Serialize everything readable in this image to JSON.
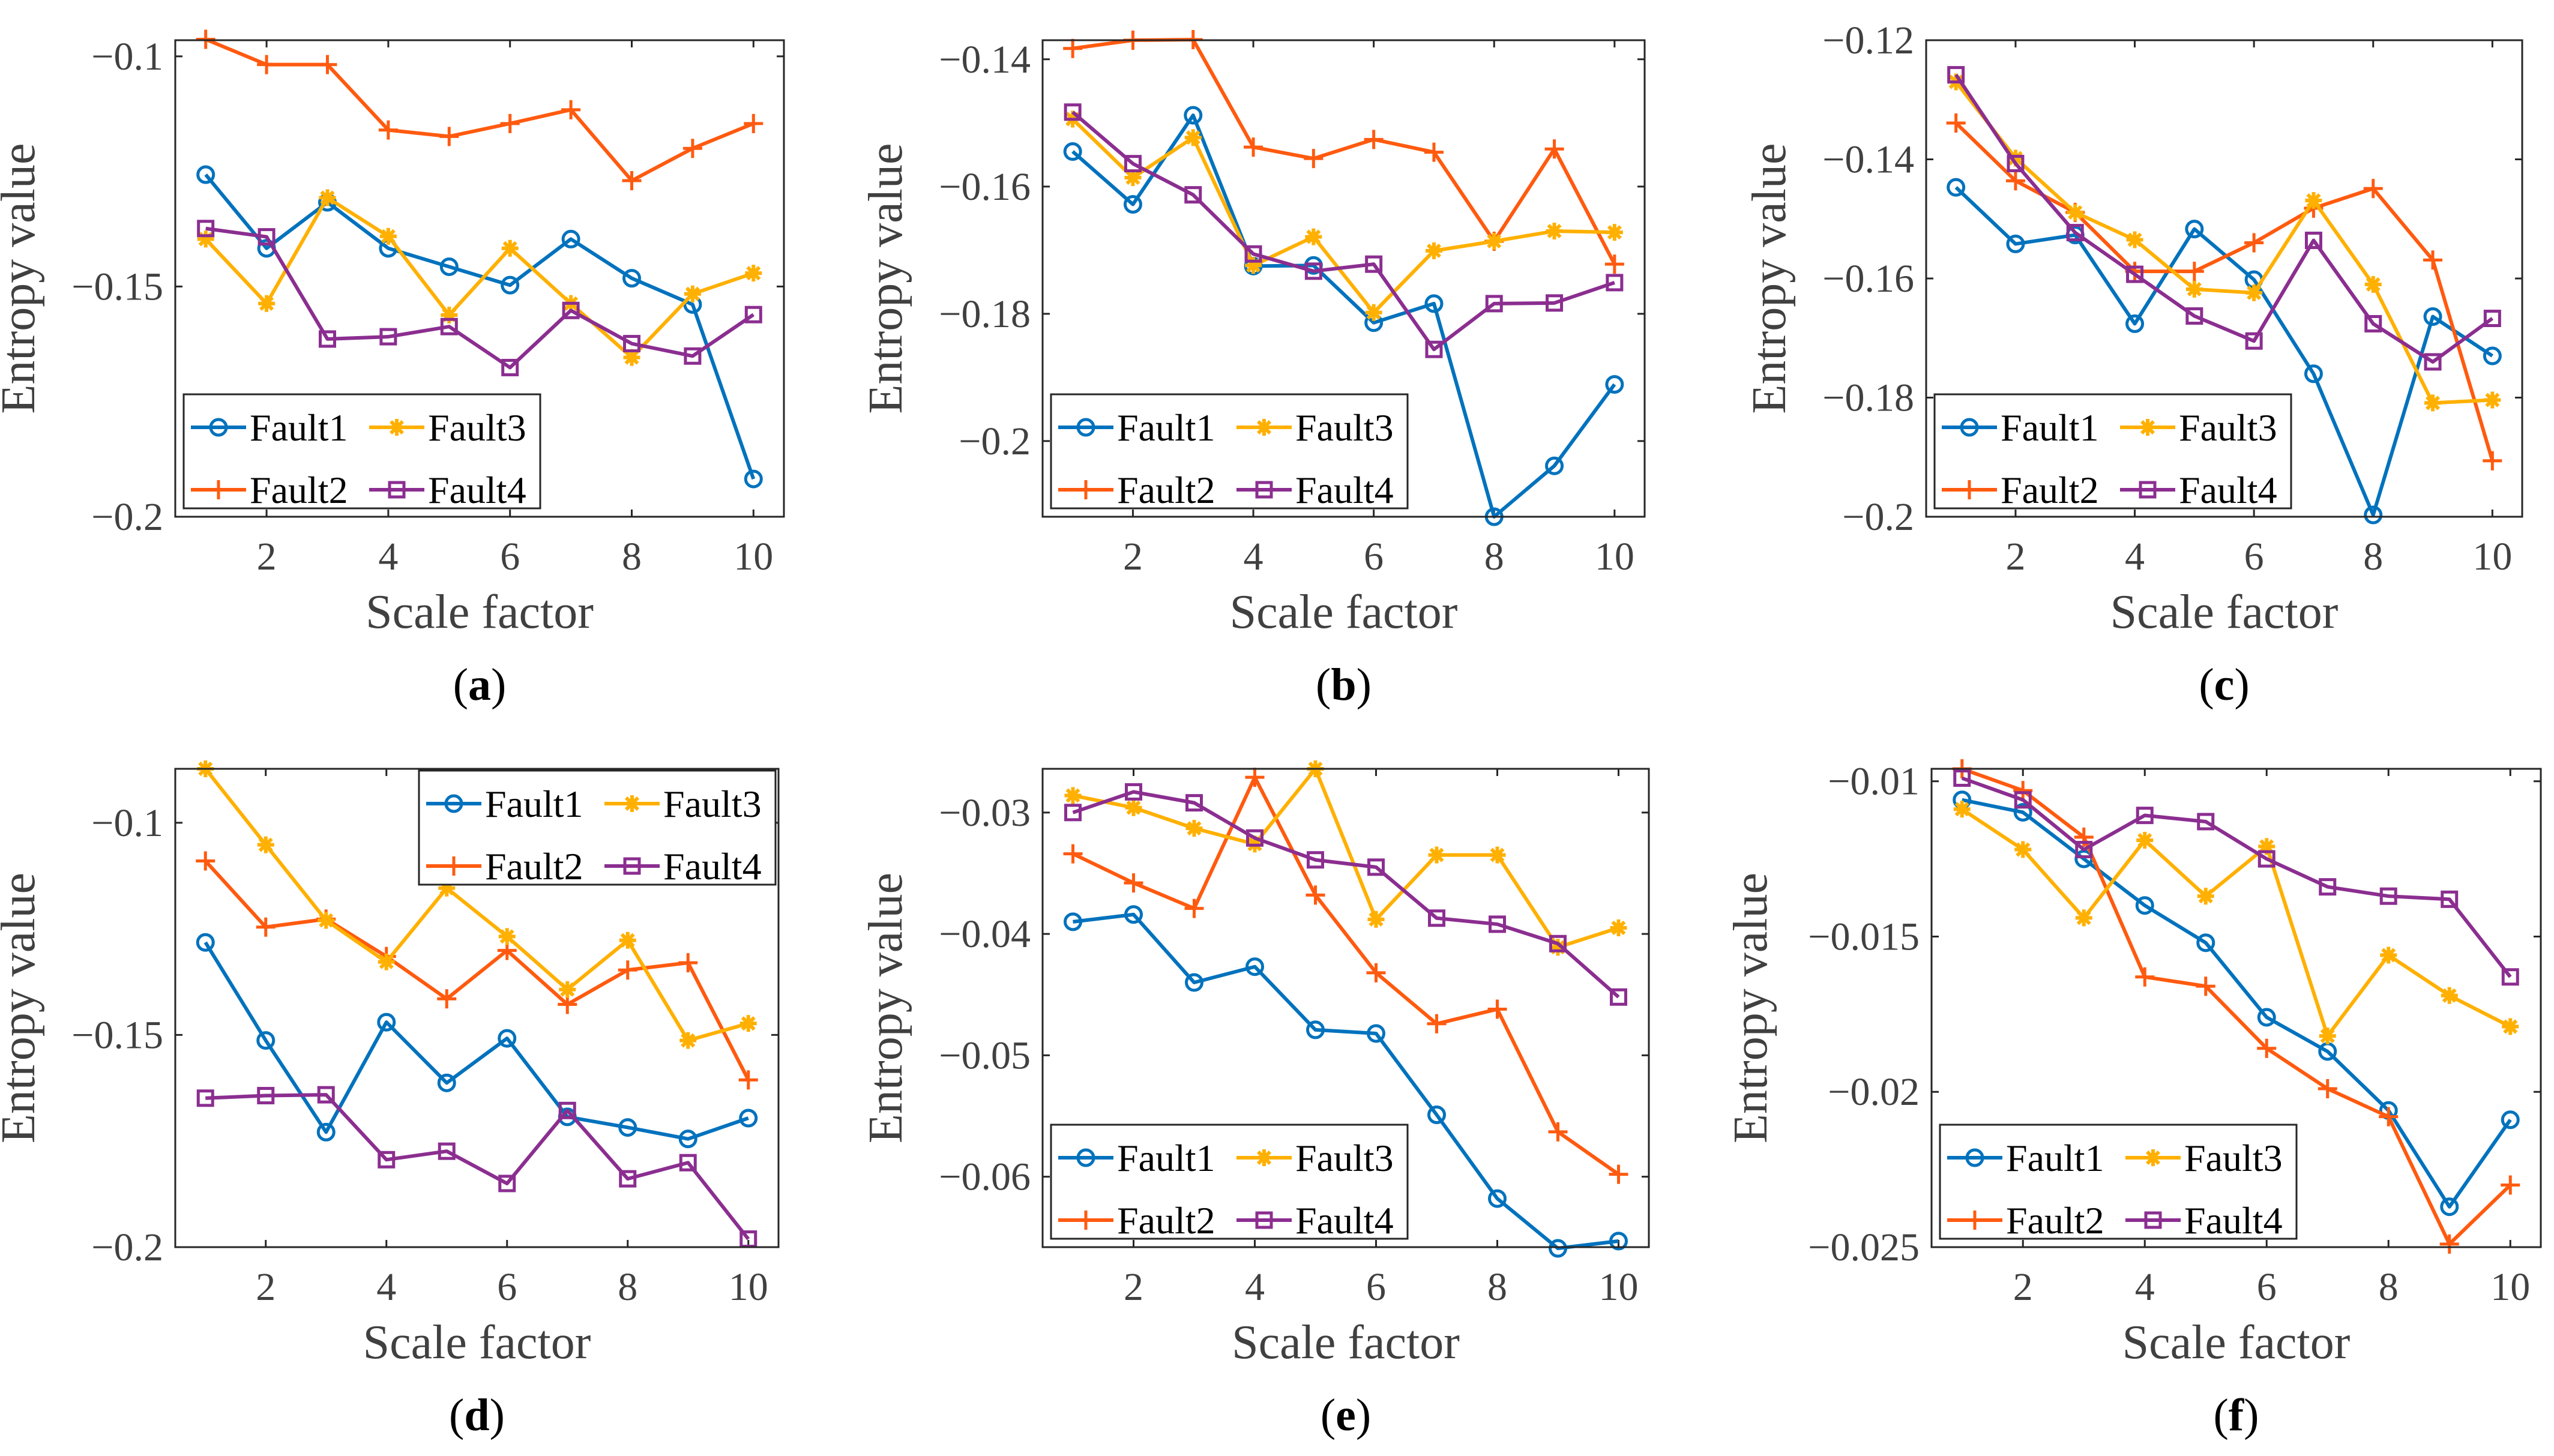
{
  "series_style": {
    "Fault1": {
      "color": "#0072BD",
      "marker": "circle"
    },
    "Fault2": {
      "color": "#FF5A0F",
      "marker": "plus"
    },
    "Fault3": {
      "color": "#FFB000",
      "marker": "asterisk"
    },
    "Fault4": {
      "color": "#8B2E90",
      "marker": "square"
    }
  },
  "chart_data": [
    {
      "type": "line",
      "caption_letter": "a",
      "xlabel": "Scale factor",
      "ylabel": "Entropy value",
      "x": [
        1,
        2,
        3,
        4,
        5,
        6,
        7,
        8,
        9,
        10
      ],
      "xlim": [
        0.5,
        10.5
      ],
      "ylim": [
        -0.2,
        -0.0965
      ],
      "xticks": [
        2,
        4,
        6,
        8,
        10
      ],
      "yticks": [
        -0.2,
        -0.15,
        -0.1
      ],
      "ytick_labels": [
        "−0.2",
        "−0.15",
        "−0.1"
      ],
      "legend": {
        "location": "bottom-left",
        "order": [
          "Fault1",
          "Fault3",
          "Fault2",
          "Fault4"
        ]
      },
      "series": [
        {
          "name": "Fault1",
          "values": [
            -0.1257,
            -0.1417,
            -0.1317,
            -0.1417,
            -0.1457,
            -0.1497,
            -0.1397,
            -0.1482,
            -0.1539,
            -0.1918
          ]
        },
        {
          "name": "Fault2",
          "values": [
            -0.0963,
            -0.1018,
            -0.1018,
            -0.116,
            -0.1174,
            -0.1146,
            -0.1116,
            -0.127,
            -0.12,
            -0.1146
          ]
        },
        {
          "name": "Fault3",
          "values": [
            -0.1397,
            -0.1537,
            -0.1307,
            -0.1391,
            -0.1562,
            -0.1417,
            -0.1537,
            -0.1654,
            -0.1516,
            -0.1471
          ]
        },
        {
          "name": "Fault4",
          "values": [
            -0.1374,
            -0.1392,
            -0.1614,
            -0.1609,
            -0.1587,
            -0.1676,
            -0.1552,
            -0.1624,
            -0.1651,
            -0.1561
          ]
        }
      ]
    },
    {
      "type": "line",
      "caption_letter": "b",
      "xlabel": "Scale factor",
      "ylabel": "Entropy value",
      "x": [
        1,
        2,
        3,
        4,
        5,
        6,
        7,
        8,
        9,
        10
      ],
      "xlim": [
        0.5,
        10.5
      ],
      "ylim": [
        -0.2119,
        -0.137
      ],
      "xticks": [
        2,
        4,
        6,
        8,
        10
      ],
      "yticks": [
        -0.2,
        -0.18,
        -0.16,
        -0.14
      ],
      "ytick_labels": [
        "−0.2",
        "−0.18",
        "−0.16",
        "−0.14"
      ],
      "legend": {
        "location": "bottom-left",
        "order": [
          "Fault1",
          "Fault3",
          "Fault2",
          "Fault4"
        ]
      },
      "series": [
        {
          "name": "Fault1",
          "values": [
            -0.1545,
            -0.1628,
            -0.1488,
            -0.1725,
            -0.1724,
            -0.1814,
            -0.1784,
            -0.2119,
            -0.2039,
            -0.1911
          ]
        },
        {
          "name": "Fault2",
          "values": [
            -0.1383,
            -0.137,
            -0.1369,
            -0.1538,
            -0.1556,
            -0.1526,
            -0.1546,
            -0.1686,
            -0.1541,
            -0.1722
          ]
        },
        {
          "name": "Fault3",
          "values": [
            -0.1494,
            -0.1586,
            -0.1523,
            -0.1724,
            -0.1679,
            -0.1798,
            -0.1701,
            -0.1686,
            -0.167,
            -0.1672
          ]
        },
        {
          "name": "Fault4",
          "values": [
            -0.1483,
            -0.1564,
            -0.1613,
            -0.1706,
            -0.1733,
            -0.1722,
            -0.1856,
            -0.1784,
            -0.1783,
            -0.1751
          ]
        }
      ]
    },
    {
      "type": "line",
      "caption_letter": "c",
      "xlabel": "Scale factor",
      "ylabel": "Entropy value",
      "x": [
        1,
        2,
        3,
        4,
        5,
        6,
        7,
        8,
        9,
        10
      ],
      "xlim": [
        0.5,
        10.5
      ],
      "ylim": [
        -0.2,
        -0.12
      ],
      "xticks": [
        2,
        4,
        6,
        8,
        10
      ],
      "yticks": [
        -0.2,
        -0.18,
        -0.16,
        -0.14,
        -0.12
      ],
      "ytick_labels": [
        "−0.2",
        "−0.18",
        "−0.16",
        "−0.14",
        "−0.12"
      ],
      "legend": {
        "location": "bottom-left",
        "order": [
          "Fault1",
          "Fault3",
          "Fault2",
          "Fault4"
        ]
      },
      "series": [
        {
          "name": "Fault1",
          "values": [
            -0.1447,
            -0.1542,
            -0.1527,
            -0.1676,
            -0.1517,
            -0.1602,
            -0.176,
            -0.1997,
            -0.1664,
            -0.173
          ]
        },
        {
          "name": "Fault2",
          "values": [
            -0.1339,
            -0.1436,
            -0.1489,
            -0.1588,
            -0.1588,
            -0.154,
            -0.1482,
            -0.1449,
            -0.1569,
            -0.1906
          ]
        },
        {
          "name": "Fault3",
          "values": [
            -0.127,
            -0.1398,
            -0.1489,
            -0.1535,
            -0.1618,
            -0.1624,
            -0.1469,
            -0.161,
            -0.1809,
            -0.1804
          ]
        },
        {
          "name": "Fault4",
          "values": [
            -0.1258,
            -0.1407,
            -0.1523,
            -0.1593,
            -0.1663,
            -0.1705,
            -0.1536,
            -0.1676,
            -0.174,
            -0.1667
          ]
        }
      ]
    },
    {
      "type": "line",
      "caption_letter": "d",
      "xlabel": "Scale factor",
      "ylabel": "Entropy value",
      "x": [
        1,
        2,
        3,
        4,
        5,
        6,
        7,
        8,
        9,
        10
      ],
      "xlim": [
        0.5,
        10.5
      ],
      "ylim": [
        -0.2,
        -0.0873
      ],
      "xticks": [
        2,
        4,
        6,
        8,
        10
      ],
      "yticks": [
        -0.2,
        -0.15,
        -0.1
      ],
      "ytick_labels": [
        "−0.2",
        "−0.15",
        "−0.1"
      ],
      "legend": {
        "location": "top-right",
        "order": [
          "Fault1",
          "Fault3",
          "Fault2",
          "Fault4"
        ]
      },
      "series": [
        {
          "name": "Fault1",
          "values": [
            -0.1282,
            -0.1513,
            -0.1729,
            -0.147,
            -0.1613,
            -0.1508,
            -0.1693,
            -0.1718,
            -0.1745,
            -0.1696
          ]
        },
        {
          "name": "Fault2",
          "values": [
            -0.109,
            -0.1246,
            -0.1227,
            -0.1315,
            -0.1415,
            -0.1301,
            -0.1428,
            -0.1347,
            -0.133,
            -0.1606
          ]
        },
        {
          "name": "Fault3",
          "values": [
            -0.0873,
            -0.1052,
            -0.123,
            -0.1328,
            -0.1154,
            -0.1268,
            -0.1393,
            -0.1277,
            -0.1513,
            -0.1473
          ]
        },
        {
          "name": "Fault4",
          "values": [
            -0.1649,
            -0.1643,
            -0.1641,
            -0.1794,
            -0.1774,
            -0.185,
            -0.1678,
            -0.1839,
            -0.1801,
            -0.1981
          ]
        }
      ]
    },
    {
      "type": "line",
      "caption_letter": "e",
      "xlabel": "Scale factor",
      "ylabel": "Entropy value",
      "x": [
        1,
        2,
        3,
        4,
        5,
        6,
        7,
        8,
        9,
        10
      ],
      "xlim": [
        0.5,
        10.5
      ],
      "ylim": [
        -0.0658,
        -0.0264
      ],
      "xticks": [
        2,
        4,
        6,
        8,
        10
      ],
      "yticks": [
        -0.06,
        -0.05,
        -0.04,
        -0.03
      ],
      "ytick_labels": [
        "−0.06",
        "−0.05",
        "−0.04",
        "−0.03"
      ],
      "legend": {
        "location": "bottom-left",
        "order": [
          "Fault1",
          "Fault3",
          "Fault2",
          "Fault4"
        ]
      },
      "series": [
        {
          "name": "Fault1",
          "values": [
            -0.039,
            -0.0384,
            -0.044,
            -0.0427,
            -0.0479,
            -0.0482,
            -0.0549,
            -0.0618,
            -0.0659,
            -0.0653
          ]
        },
        {
          "name": "Fault2",
          "values": [
            -0.0334,
            -0.0358,
            -0.0379,
            -0.0271,
            -0.0368,
            -0.0432,
            -0.0474,
            -0.0462,
            -0.0563,
            -0.0598
          ]
        },
        {
          "name": "Fault3",
          "values": [
            -0.0286,
            -0.0296,
            -0.0313,
            -0.0326,
            -0.0264,
            -0.0388,
            -0.0335,
            -0.0335,
            -0.0411,
            -0.0395
          ]
        },
        {
          "name": "Fault4",
          "values": [
            -0.03,
            -0.0283,
            -0.0292,
            -0.0321,
            -0.0339,
            -0.0345,
            -0.0387,
            -0.0392,
            -0.0408,
            -0.0452
          ]
        }
      ]
    },
    {
      "type": "line",
      "caption_letter": "f",
      "xlabel": "Scale factor",
      "ylabel": "Entropy value",
      "x": [
        1,
        2,
        3,
        4,
        5,
        6,
        7,
        8,
        9,
        10
      ],
      "xlim": [
        0.5,
        10.5
      ],
      "ylim": [
        -0.025,
        -0.0096
      ],
      "xticks": [
        2,
        4,
        6,
        8,
        10
      ],
      "yticks": [
        -0.025,
        -0.02,
        -0.015,
        -0.01
      ],
      "ytick_labels": [
        "−0.025",
        "−0.02",
        "−0.015",
        "−0.01"
      ],
      "legend": {
        "location": "bottom-left",
        "order": [
          "Fault1",
          "Fault3",
          "Fault2",
          "Fault4"
        ]
      },
      "series": [
        {
          "name": "Fault1",
          "values": [
            -0.0106,
            -0.011,
            -0.0125,
            -0.014,
            -0.0152,
            -0.0176,
            -0.0187,
            -0.0206,
            -0.0237,
            -0.0209
          ]
        },
        {
          "name": "Fault2",
          "values": [
            -0.0096,
            -0.0103,
            -0.0118,
            -0.0163,
            -0.0166,
            -0.0186,
            -0.0199,
            -0.0208,
            -0.0249,
            -0.023
          ]
        },
        {
          "name": "Fault3",
          "values": [
            -0.0109,
            -0.0122,
            -0.0144,
            -0.0119,
            -0.0137,
            -0.0121,
            -0.0182,
            -0.0156,
            -0.0169,
            -0.0179
          ]
        },
        {
          "name": "Fault4",
          "values": [
            -0.0099,
            -0.0106,
            -0.0122,
            -0.0111,
            -0.0113,
            -0.0125,
            -0.0134,
            -0.0137,
            -0.0138,
            -0.0163
          ]
        }
      ]
    }
  ]
}
